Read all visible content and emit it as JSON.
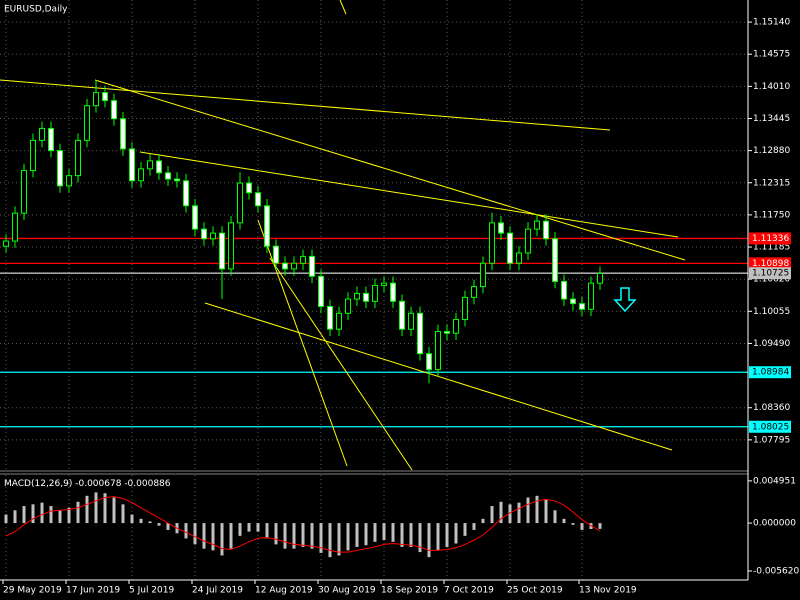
{
  "chart_data": [
    {
      "type": "candlestick",
      "title": "EURUSD,Daily",
      "categories": [
        "29 May 2019",
        null,
        null,
        null,
        null,
        null,
        null,
        "17 Jun 2019",
        null,
        null,
        null,
        null,
        null,
        null,
        "5 Jul 2019",
        null,
        null,
        null,
        null,
        null,
        null,
        "24 Jul 2019",
        null,
        null,
        null,
        null,
        null,
        null,
        "12 Aug 2019",
        null,
        null,
        null,
        null,
        null,
        null,
        "30 Aug 2019",
        null,
        null,
        null,
        null,
        null,
        null,
        "18 Sep 2019",
        null,
        null,
        null,
        null,
        null,
        null,
        "7 Oct 2019",
        null,
        null,
        null,
        null,
        null,
        null,
        "25 Oct 2019",
        null,
        null,
        null,
        null,
        null,
        null,
        null,
        "13 Nov 2019",
        null,
        null
      ],
      "open": [
        1.112,
        1.1129,
        1.1178,
        1.1253,
        1.1306,
        1.1327,
        1.1288,
        1.1226,
        1.1244,
        1.1306,
        1.1367,
        1.139,
        1.1376,
        1.1344,
        1.1291,
        1.1235,
        1.1256,
        1.127,
        1.1249,
        1.1238,
        1.1235,
        1.1191,
        1.115,
        1.1133,
        1.1143,
        1.108,
        1.1161,
        1.1231,
        1.1214,
        1.1191,
        1.112,
        1.109,
        1.108,
        1.109,
        1.1102,
        1.1067,
        1.1014,
        1.0974,
        1.1002,
        1.1027,
        1.1037,
        1.1023,
        1.1051,
        1.1055,
        1.1023,
        1.0974,
        1.1002,
        1.0931,
        1.0903,
        1.097,
        1.0967,
        1.0991,
        1.103,
        1.1049,
        1.109,
        1.1161,
        1.1143,
        1.109,
        1.1108,
        1.115,
        1.1164,
        1.1133,
        1.1058,
        1.1027,
        1.1019,
        1.1009,
        1.1055
      ],
      "high": [
        1.1141,
        1.119,
        1.1265,
        1.1318,
        1.1339,
        1.1339,
        1.13,
        1.1256,
        1.1318,
        1.1379,
        1.1412,
        1.1402,
        1.1388,
        1.1356,
        1.1303,
        1.1268,
        1.1282,
        1.1282,
        1.1261,
        1.125,
        1.1247,
        1.1203,
        1.1162,
        1.1155,
        1.1155,
        1.1173,
        1.125,
        1.1243,
        1.1226,
        1.1203,
        1.1132,
        1.1102,
        1.1102,
        1.1114,
        1.1114,
        1.1079,
        1.1026,
        1.1014,
        1.1039,
        1.1049,
        1.1049,
        1.1063,
        1.1067,
        1.1067,
        1.1035,
        1.1014,
        1.1014,
        1.0943,
        1.0982,
        1.0982,
        1.1003,
        1.1042,
        1.1061,
        1.1102,
        1.1179,
        1.1173,
        1.1155,
        1.112,
        1.1162,
        1.1176,
        1.1176,
        1.1145,
        1.107,
        1.1039,
        1.1031,
        1.1067,
        1.1084
      ],
      "low": [
        1.1108,
        1.1117,
        1.1166,
        1.1241,
        1.1294,
        1.1276,
        1.1214,
        1.1214,
        1.1232,
        1.1294,
        1.1355,
        1.1364,
        1.1332,
        1.1279,
        1.1223,
        1.1223,
        1.1244,
        1.1237,
        1.1226,
        1.1223,
        1.1179,
        1.1138,
        1.1121,
        1.1121,
        1.1027,
        1.1068,
        1.1149,
        1.1202,
        1.1179,
        1.1108,
        1.1078,
        1.1068,
        1.1068,
        1.1078,
        1.1055,
        1.1002,
        1.0962,
        1.0962,
        1.099,
        1.1015,
        1.1011,
        1.1011,
        1.1039,
        1.1011,
        1.0962,
        1.0962,
        1.0919,
        1.0879,
        1.0891,
        1.0955,
        1.0955,
        1.0979,
        1.1018,
        1.1037,
        1.1078,
        1.1131,
        1.1078,
        1.1078,
        1.1096,
        1.1138,
        1.1121,
        1.1046,
        1.1015,
        1.1007,
        1.0997,
        1.0997,
        1.1043
      ],
      "close": [
        1.1129,
        1.1178,
        1.1253,
        1.1306,
        1.1327,
        1.1288,
        1.1226,
        1.1244,
        1.1306,
        1.1367,
        1.139,
        1.1376,
        1.1344,
        1.1291,
        1.1235,
        1.1256,
        1.127,
        1.1249,
        1.1238,
        1.1235,
        1.1191,
        1.115,
        1.1133,
        1.1143,
        1.108,
        1.1161,
        1.1231,
        1.1214,
        1.1191,
        1.112,
        1.109,
        1.108,
        1.109,
        1.1102,
        1.1067,
        1.1014,
        1.0974,
        1.1002,
        1.1027,
        1.1037,
        1.1023,
        1.1051,
        1.1055,
        1.1023,
        1.0974,
        1.1002,
        1.0931,
        1.0903,
        1.097,
        1.0967,
        1.0991,
        1.103,
        1.1049,
        1.109,
        1.1161,
        1.1143,
        1.109,
        1.1108,
        1.115,
        1.1164,
        1.1133,
        1.1058,
        1.1027,
        1.1019,
        1.1009,
        1.1055,
        1.1072
      ],
      "color": "#00ff00",
      "ylim": [
        1.07265,
        1.15528
      ],
      "yticks": [
        {
          "value": 1.1514,
          "label": "1.15140"
        },
        1.14575,
        {
          "value": 1.1401,
          "label": "1.14010"
        },
        1.13445,
        {
          "value": 1.1288,
          "label": "1.12880"
        },
        1.12315,
        {
          "value": 1.1175,
          "label": "1.11750"
        },
        1.11185,
        {
          "value": 1.1062,
          "label": "1.10620"
        },
        1.10055,
        {
          "value": 1.0949,
          "label": "1.09490"
        },
        {
          "value": 1.0836,
          "label": "1.08360"
        },
        1.07795
      ],
      "grid": true,
      "levels": [
        {
          "value": 1.11336,
          "color": "#ff0000"
        },
        {
          "value": 1.10898,
          "color": "#ff0000"
        },
        {
          "value": 1.10725,
          "color": "#c0c0c0"
        },
        {
          "value": 1.08984,
          "color": "#00ffff"
        },
        {
          "value": 1.08025,
          "color": "#00ffff"
        }
      ]
    },
    {
      "type": "macd",
      "title": "MACD(12,26,9)",
      "histogram": [
        0.001,
        0.0015,
        0.002,
        0.0022,
        0.0024,
        0.002,
        0.0015,
        0.0018,
        0.0025,
        0.0032,
        0.0036,
        0.0035,
        0.003,
        0.0022,
        0.001,
        0.0005,
        0.0002,
        -0.0003,
        -0.0008,
        -0.0012,
        -0.0018,
        -0.0025,
        -0.003,
        -0.0032,
        -0.0038,
        -0.003,
        -0.0015,
        -0.001,
        -0.001,
        -0.0018,
        -0.0025,
        -0.003,
        -0.003,
        -0.0028,
        -0.003,
        -0.0035,
        -0.004,
        -0.0038,
        -0.0032,
        -0.0028,
        -0.0026,
        -0.0022,
        -0.002,
        -0.0022,
        -0.0028,
        -0.0028,
        -0.0034,
        -0.004,
        -0.0032,
        -0.0028,
        -0.0024,
        -0.0015,
        -0.0008,
        0.0005,
        0.002,
        0.0025,
        0.0022,
        0.0024,
        0.003,
        0.0032,
        0.0028,
        0.0015,
        0.0005,
        -0.0002,
        -0.0008,
        -0.0007,
        -0.000678
      ],
      "signal": [
        -0.0015,
        -0.001,
        -0.0002,
        0.0005,
        0.001,
        0.0014,
        0.0015,
        0.0016,
        0.0018,
        0.0022,
        0.0026,
        0.003,
        0.0031,
        0.0029,
        0.0024,
        0.0018,
        0.0012,
        0.0006,
        0.0,
        -0.0006,
        -0.0011,
        -0.0016,
        -0.0021,
        -0.0025,
        -0.003,
        -0.0031,
        -0.0027,
        -0.0022,
        -0.0018,
        -0.0017,
        -0.0019,
        -0.0022,
        -0.0025,
        -0.0026,
        -0.0027,
        -0.0029,
        -0.0032,
        -0.0034,
        -0.0034,
        -0.0032,
        -0.003,
        -0.0028,
        -0.0025,
        -0.0024,
        -0.0025,
        -0.0026,
        -0.0028,
        -0.0032,
        -0.0032,
        -0.0031,
        -0.0029,
        -0.0025,
        -0.002,
        -0.0014,
        -0.0005,
        0.0005,
        0.0012,
        0.0017,
        0.0022,
        0.0026,
        0.0028,
        0.0026,
        0.0021,
        0.0013,
        0.0004,
        -0.0003,
        -0.000886
      ],
      "histogram_color": "#c0c0c0",
      "signal_color": "#ff0000",
      "ylim": [
        -0.006678,
        0.005642
      ],
      "yticks": [
        0.004951,
        {
          "value": 0,
          "label": "0.000000"
        },
        {
          "value": -0.00562,
          "label": "-0.005620"
        }
      ]
    }
  ]
}
